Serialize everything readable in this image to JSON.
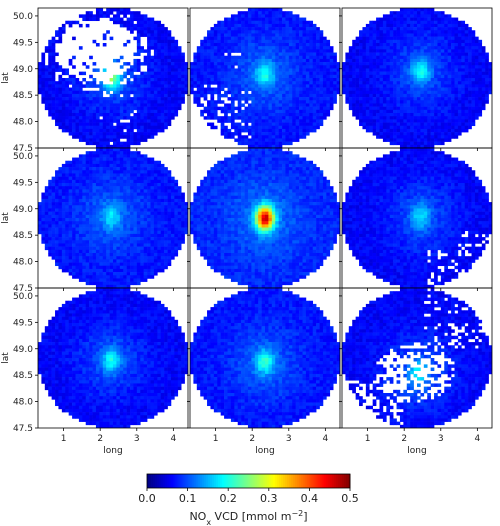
{
  "chart_data": {
    "type": "heatmap",
    "description_rows": 3,
    "description_cols": 3,
    "xlabel": "long",
    "ylabel": "lat",
    "xlim": [
      0.3,
      4.4
    ],
    "ylim": [
      47.5,
      50.15
    ],
    "x_ticks": [
      "1",
      "2",
      "3",
      "4"
    ],
    "x_tick_values": [
      1,
      2,
      3,
      4
    ],
    "y_ticks": [
      "50.0",
      "49.5",
      "49.0",
      "48.5",
      "48.0",
      "47.5"
    ],
    "y_tick_values": [
      50.0,
      49.5,
      49.0,
      48.5,
      48.0,
      47.5
    ],
    "colorbar": {
      "label_prefix": "NO",
      "label_sub": "x",
      "label_suffix": " VCD [mmol m",
      "label_sup": "−2",
      "label_end": "]",
      "vmin": 0.0,
      "vmax": 0.5,
      "ticks": [
        "0.0",
        "0.1",
        "0.2",
        "0.3",
        "0.4",
        "0.5"
      ],
      "tick_values": [
        0.0,
        0.1,
        0.2,
        0.3,
        0.4,
        0.5
      ],
      "colormap": "jet"
    },
    "domain": {
      "center_lon": 2.35,
      "center_lat": 48.83,
      "radius_lon": 2.05,
      "radius_lat": 1.33
    },
    "panels": [
      {
        "row": 0,
        "col": 0,
        "peak_value": 0.28,
        "background": 0.06,
        "hotspot": [
          2.3,
          48.85
        ],
        "missing": "large-north-west"
      },
      {
        "row": 0,
        "col": 1,
        "peak_value": 0.2,
        "background": 0.07,
        "hotspot": [
          2.35,
          48.9
        ],
        "missing": "south-west-scatter"
      },
      {
        "row": 0,
        "col": 2,
        "peak_value": 0.2,
        "background": 0.06,
        "hotspot": [
          2.45,
          48.95
        ],
        "missing": "none"
      },
      {
        "row": 1,
        "col": 0,
        "peak_value": 0.18,
        "background": 0.07,
        "hotspot": [
          2.3,
          48.85
        ],
        "missing": "none"
      },
      {
        "row": 1,
        "col": 1,
        "peak_value": 0.47,
        "background": 0.08,
        "hotspot": [
          2.35,
          48.82
        ],
        "missing": "none"
      },
      {
        "row": 1,
        "col": 2,
        "peak_value": 0.18,
        "background": 0.06,
        "hotspot": [
          2.45,
          48.85
        ],
        "missing": "south-east"
      },
      {
        "row": 2,
        "col": 0,
        "peak_value": 0.2,
        "background": 0.06,
        "hotspot": [
          2.3,
          48.78
        ],
        "missing": "none"
      },
      {
        "row": 2,
        "col": 1,
        "peak_value": 0.22,
        "background": 0.07,
        "hotspot": [
          2.35,
          48.75
        ],
        "missing": "none"
      },
      {
        "row": 2,
        "col": 2,
        "peak_value": 0.2,
        "background": 0.06,
        "hotspot": [
          2.4,
          48.55
        ],
        "missing": "large-scatter"
      }
    ]
  }
}
